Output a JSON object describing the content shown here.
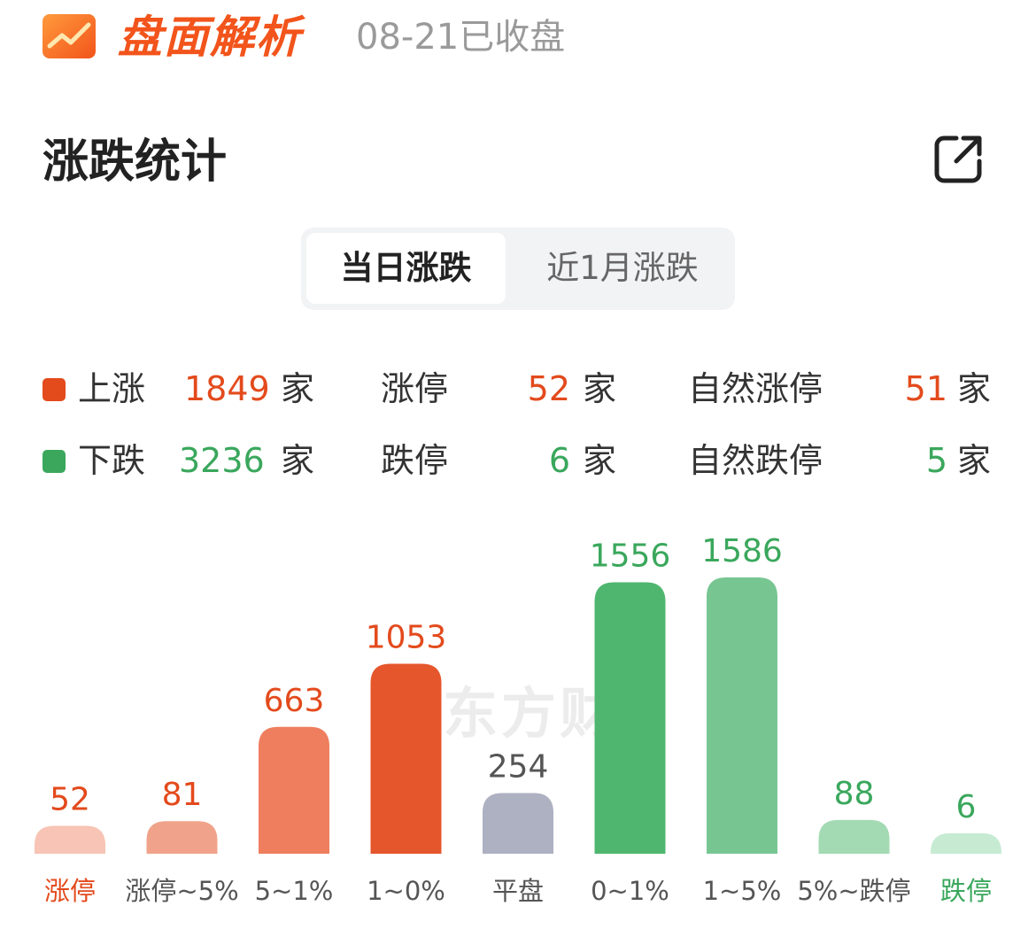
{
  "header": {
    "brand": "盘面解析",
    "date_status": "08-21已收盘"
  },
  "section": {
    "title": "涨跌统计",
    "share_icon": "share-icon"
  },
  "tabs": [
    {
      "label": "当日涨跌",
      "active": true
    },
    {
      "label": "近1月涨跌",
      "active": false
    }
  ],
  "stats": {
    "unit": "家",
    "rise": {
      "label": "上涨",
      "count": "1849"
    },
    "fall": {
      "label": "下跌",
      "count": "3236"
    },
    "limit_up": {
      "label": "涨停",
      "count": "52"
    },
    "limit_down": {
      "label": "跌停",
      "count": "6"
    },
    "natural_limit_up": {
      "label": "自然涨停",
      "count": "51"
    },
    "natural_limit_down": {
      "label": "自然跌停",
      "count": "5"
    }
  },
  "colors": {
    "red": "#e34a1c",
    "green": "#3aa75c",
    "brand": "#f2541b"
  },
  "watermark": "东方财",
  "chart_data": {
    "type": "bar",
    "categories": [
      "涨停",
      "涨停~5%",
      "5~1%",
      "1~0%",
      "平盘",
      "0~1%",
      "1~5%",
      "5%~跌停",
      "跌停"
    ],
    "values": [
      52,
      81,
      663,
      1053,
      254,
      1556,
      1586,
      88,
      6
    ],
    "value_labels": [
      "52",
      "81",
      "663",
      "1053",
      "254",
      "1556",
      "1586",
      "88",
      "6"
    ],
    "bar_colors": [
      "#f7c4b5",
      "#f0a38a",
      "#ee7e5e",
      "#e5562d",
      "#aeb1c2",
      "#4fb66f",
      "#77c692",
      "#a3dab3",
      "#c6ebd2"
    ],
    "label_colors": [
      "#e34a1c",
      "#e34a1c",
      "#e34a1c",
      "#e34a1c",
      "#555555",
      "#3aa75c",
      "#3aa75c",
      "#3aa75c",
      "#3aa75c"
    ],
    "category_colors": [
      "#e34a1c",
      "#555555",
      "#555555",
      "#555555",
      "#555555",
      "#555555",
      "#555555",
      "#555555",
      "#3aa75c"
    ]
  }
}
